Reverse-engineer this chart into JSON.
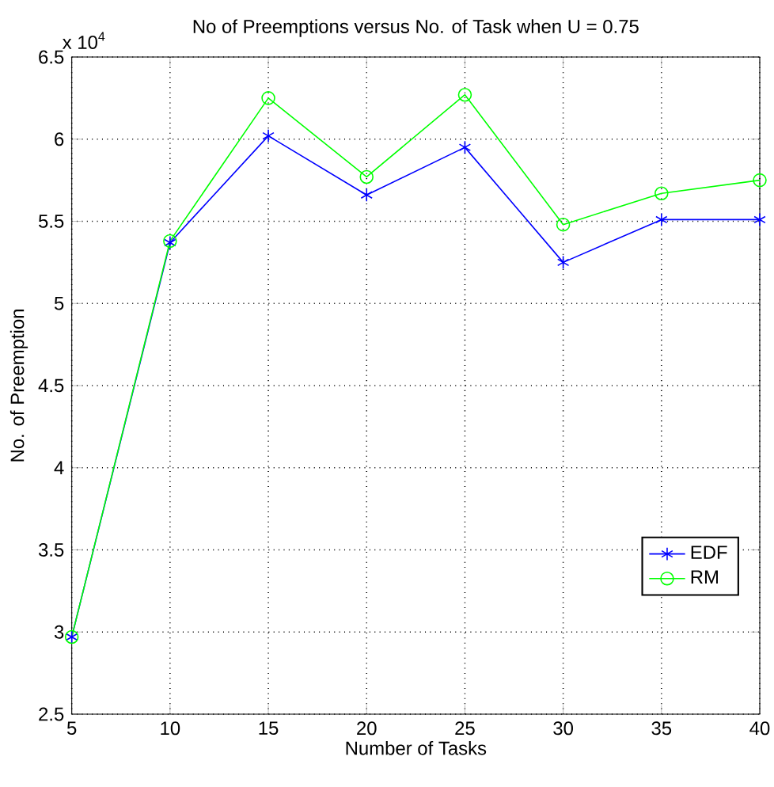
{
  "chart_data": {
    "type": "line",
    "title": "No of Preemptions versus No. of Task when U = 0.75",
    "xlabel": "Number of Tasks",
    "ylabel": "No. of Preemption",
    "annotations": [
      "x 10$^{4}$"
    ],
    "x": [
      5,
      10,
      15,
      20,
      25,
      30,
      35,
      40
    ],
    "series": [
      {
        "name": "EDF",
        "color": "#0000ff",
        "marker": "cross",
        "values": [
          2.97,
          5.37,
          6.02,
          5.66,
          5.95,
          5.25,
          5.51,
          5.51
        ]
      },
      {
        "name": "RM",
        "color": "#00ff00",
        "marker": "circle",
        "values": [
          2.97,
          5.38,
          6.25,
          5.77,
          6.27,
          5.48,
          5.67,
          5.75
        ]
      }
    ],
    "xlim": [
      5,
      40
    ],
    "xticks": [
      5,
      10,
      15,
      20,
      25,
      30,
      35,
      40
    ],
    "ylim": [
      2.5,
      6.5
    ],
    "yticks": [
      2.5,
      3,
      3.5,
      4,
      4.5,
      5,
      5.5,
      6,
      6.5
    ],
    "grid": true,
    "legend": "bottom right",
    "line_style": "solid"
  }
}
